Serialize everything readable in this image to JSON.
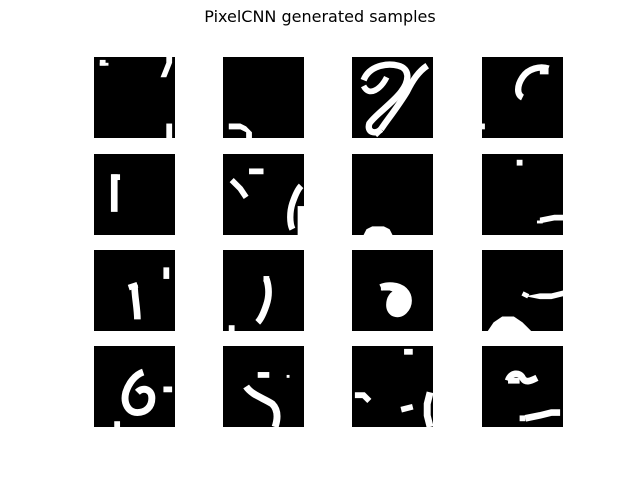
{
  "figure": {
    "title": "PixelCNN generated samples",
    "background": "#ffffff",
    "sample_colors": {
      "background": "#000000",
      "stroke": "#ffffff"
    },
    "grid": {
      "rows": 4,
      "cols": 4
    }
  },
  "samples": [
    {
      "id": "r1c1"
    },
    {
      "id": "r1c2"
    },
    {
      "id": "r1c3"
    },
    {
      "id": "r1c4"
    },
    {
      "id": "r2c1"
    },
    {
      "id": "r2c2"
    },
    {
      "id": "r2c3"
    },
    {
      "id": "r2c4"
    },
    {
      "id": "r3c1"
    },
    {
      "id": "r3c2"
    },
    {
      "id": "r3c3"
    },
    {
      "id": "r3c4"
    },
    {
      "id": "r4c1"
    },
    {
      "id": "r4c2"
    },
    {
      "id": "r4c3"
    },
    {
      "id": "r4c4"
    }
  ]
}
